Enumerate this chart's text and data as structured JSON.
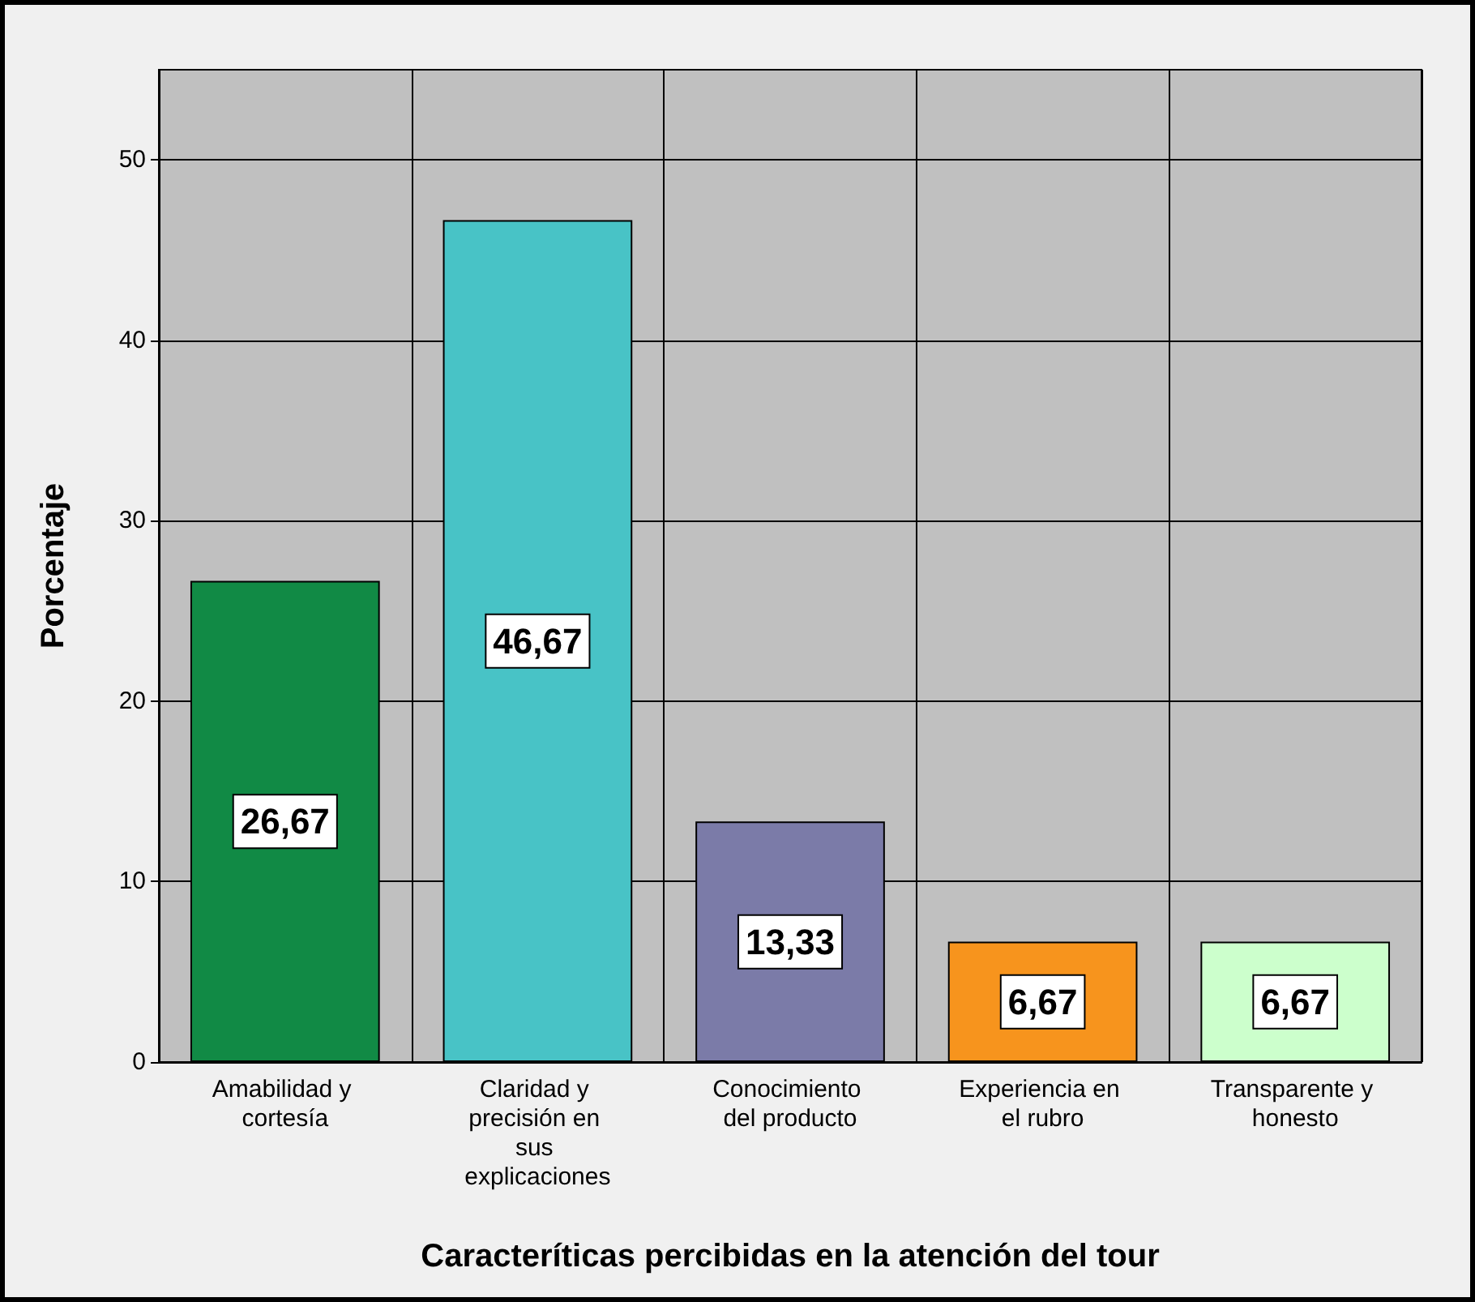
{
  "chart_data": {
    "type": "bar",
    "categories": [
      "Amabilidad y cortesía",
      "Claridad y precisión en sus explicaciones",
      "Conocimiento del producto",
      "Experiencia en el rubro",
      "Transparente y honesto"
    ],
    "values": [
      26.67,
      46.67,
      13.33,
      6.67,
      6.67
    ],
    "value_labels": [
      "26,67",
      "46,67",
      "13,33",
      "6,67",
      "6,67"
    ],
    "colors": [
      "#118a45",
      "#48c3c6",
      "#7b7ba8",
      "#f7941d",
      "#ccffcc"
    ],
    "xlabel": "Caracteríticas percibidas en la atención del tour",
    "ylabel": "Porcentaje",
    "ylim": [
      0,
      55
    ],
    "yticks": [
      0,
      10,
      20,
      30,
      40,
      50
    ],
    "grid": true
  }
}
